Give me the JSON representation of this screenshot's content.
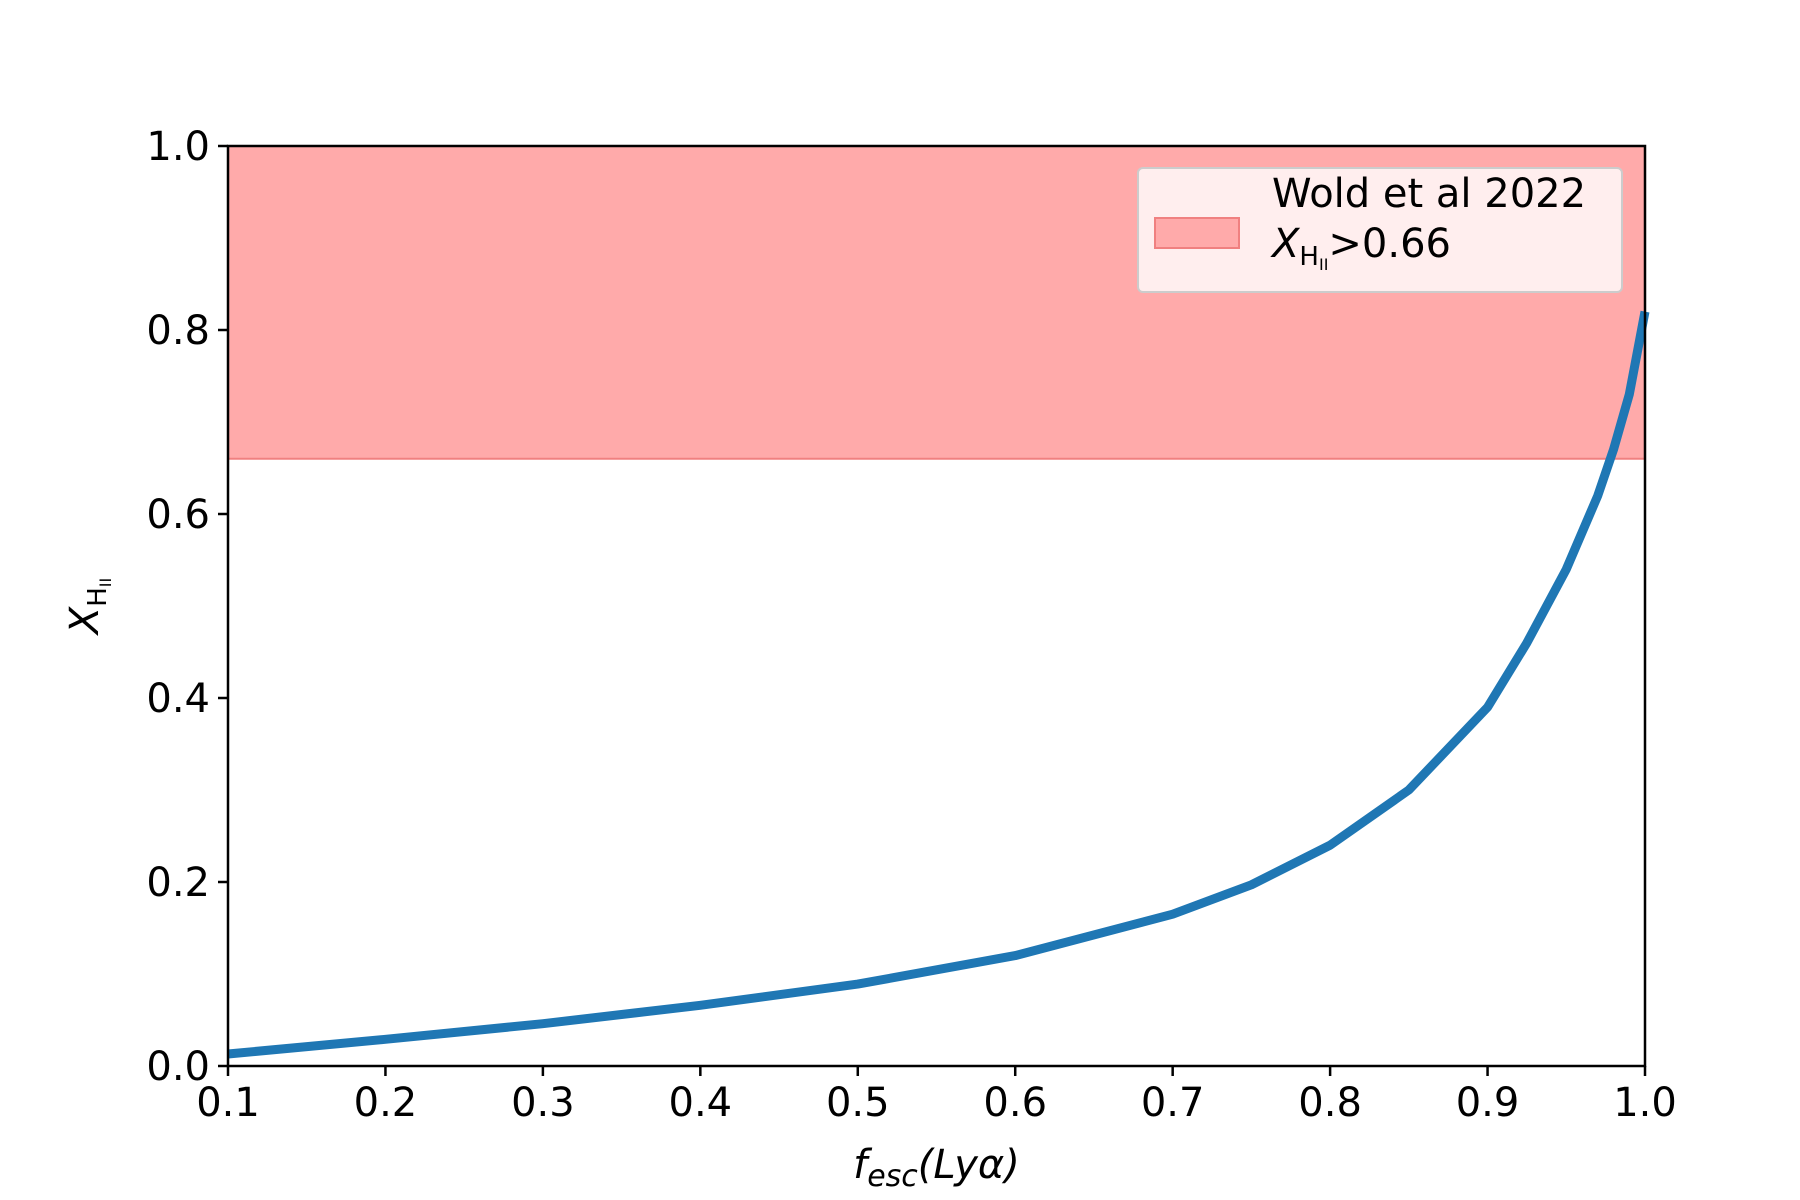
{
  "chart_data": {
    "type": "line",
    "title": "",
    "xlabel": {
      "main": "f",
      "sub": "esc",
      "rest": "(Lyα)"
    },
    "ylabel": {
      "main": "X",
      "sub": "H",
      "subsub": "II"
    },
    "xlim": [
      0.1,
      1.0
    ],
    "ylim": [
      0.0,
      1.0
    ],
    "xticks": [
      0.1,
      0.2,
      0.3,
      0.4,
      0.5,
      0.6,
      0.7,
      0.8,
      0.9,
      1.0
    ],
    "xtick_labels": [
      "0.1",
      "0.2",
      "0.3",
      "0.4",
      "0.5",
      "0.6",
      "0.7",
      "0.8",
      "0.9",
      "1.0"
    ],
    "yticks": [
      0.0,
      0.2,
      0.4,
      0.6,
      0.8,
      1.0
    ],
    "ytick_labels": [
      "0.0",
      "0.2",
      "0.4",
      "0.6",
      "0.8",
      "1.0"
    ],
    "grid": false,
    "shaded_region": {
      "y_min": 0.66,
      "y_max": 1.0,
      "color": "#ffaaaa",
      "edge_color": "#f08080",
      "legend": {
        "line1": "Wold et al 2022",
        "math_main": "X",
        "math_sub": "H",
        "math_subsub": "II",
        "math_rest": ">0.66"
      }
    },
    "legend_position": "upper right",
    "series": [
      {
        "color": "#1f77b4",
        "x": [
          0.1,
          0.2,
          0.3,
          0.4,
          0.5,
          0.6,
          0.7,
          0.75,
          0.8,
          0.85,
          0.9,
          0.925,
          0.95,
          0.97,
          0.98,
          0.99,
          1.0
        ],
        "y": [
          0.013,
          0.029,
          0.046,
          0.066,
          0.089,
          0.12,
          0.165,
          0.197,
          0.24,
          0.3,
          0.39,
          0.46,
          0.54,
          0.62,
          0.67,
          0.73,
          0.82
        ]
      }
    ]
  }
}
